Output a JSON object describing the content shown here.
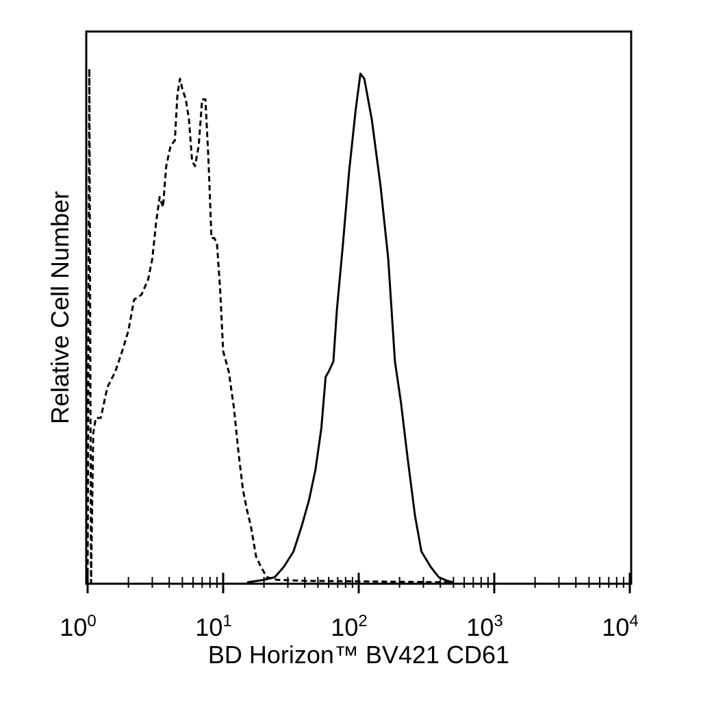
{
  "chart_data": {
    "type": "line",
    "title": "",
    "xlabel": "BD Horizon™ BV421 CD61",
    "ylabel": "Relative Cell Number",
    "x_scale": "log",
    "xlim": [
      1,
      10000
    ],
    "ylim": [
      0,
      1.0
    ],
    "grid": false,
    "legend": "none",
    "x_tick_labels": [
      {
        "base": "10",
        "exp": "0"
      },
      {
        "base": "10",
        "exp": "1"
      },
      {
        "base": "10",
        "exp": "2"
      },
      {
        "base": "10",
        "exp": "3"
      },
      {
        "base": "10",
        "exp": "4"
      }
    ],
    "series": [
      {
        "style": "dashed",
        "color": "#000000",
        "points": [
          [
            1.0,
            0.0
          ],
          [
            1.03,
            1.0
          ],
          [
            1.06,
            0.0
          ],
          [
            1.1,
            0.29
          ],
          [
            1.15,
            0.32
          ],
          [
            1.25,
            0.32
          ],
          [
            1.4,
            0.38
          ],
          [
            1.6,
            0.41
          ],
          [
            1.8,
            0.45
          ],
          [
            2.0,
            0.49
          ],
          [
            2.2,
            0.55
          ],
          [
            2.5,
            0.56
          ],
          [
            2.8,
            0.59
          ],
          [
            3.0,
            0.63
          ],
          [
            3.2,
            0.7
          ],
          [
            3.4,
            0.75
          ],
          [
            3.6,
            0.73
          ],
          [
            3.8,
            0.81
          ],
          [
            4.1,
            0.85
          ],
          [
            4.4,
            0.86
          ],
          [
            4.6,
            0.95
          ],
          [
            4.8,
            0.98
          ],
          [
            5.0,
            0.96
          ],
          [
            5.3,
            0.94
          ],
          [
            5.6,
            0.9
          ],
          [
            5.9,
            0.82
          ],
          [
            6.2,
            0.81
          ],
          [
            6.6,
            0.85
          ],
          [
            7.0,
            0.94
          ],
          [
            7.4,
            0.94
          ],
          [
            7.8,
            0.82
          ],
          [
            8.2,
            0.67
          ],
          [
            8.6,
            0.67
          ],
          [
            9.0,
            0.66
          ],
          [
            9.5,
            0.57
          ],
          [
            10.0,
            0.45
          ],
          [
            11.0,
            0.41
          ],
          [
            12.0,
            0.34
          ],
          [
            13.0,
            0.25
          ],
          [
            14.0,
            0.18
          ],
          [
            15.0,
            0.14
          ],
          [
            16.0,
            0.11
          ],
          [
            17.5,
            0.05
          ],
          [
            19.0,
            0.03
          ],
          [
            21.0,
            0.01
          ],
          [
            25.0,
            0.005
          ],
          [
            40.0,
            0.003
          ],
          [
            100.0,
            0.002
          ],
          [
            500.0,
            0.0
          ]
        ]
      },
      {
        "style": "solid",
        "color": "#000000",
        "points": [
          [
            15.0,
            0.0
          ],
          [
            20.0,
            0.005
          ],
          [
            24.0,
            0.01
          ],
          [
            28.0,
            0.03
          ],
          [
            33.0,
            0.06
          ],
          [
            38.0,
            0.11
          ],
          [
            43.0,
            0.16
          ],
          [
            48.0,
            0.22
          ],
          [
            53.0,
            0.3
          ],
          [
            57.0,
            0.4
          ],
          [
            60.0,
            0.41
          ],
          [
            65.0,
            0.43
          ],
          [
            69.0,
            0.53
          ],
          [
            76.0,
            0.65
          ],
          [
            85.0,
            0.8
          ],
          [
            95.0,
            0.92
          ],
          [
            103.0,
            0.99
          ],
          [
            110.0,
            0.98
          ],
          [
            125.0,
            0.9
          ],
          [
            145.0,
            0.77
          ],
          [
            165.0,
            0.63
          ],
          [
            185.0,
            0.43
          ],
          [
            205.0,
            0.35
          ],
          [
            230.0,
            0.24
          ],
          [
            260.0,
            0.13
          ],
          [
            290.0,
            0.06
          ],
          [
            340.0,
            0.03
          ],
          [
            390.0,
            0.01
          ],
          [
            450.0,
            0.003
          ],
          [
            500.0,
            0.0
          ]
        ]
      }
    ]
  }
}
